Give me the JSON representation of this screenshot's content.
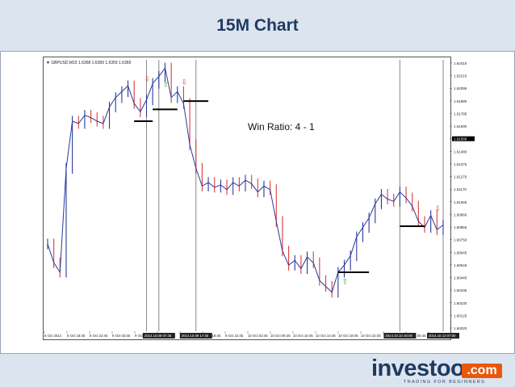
{
  "slide": {
    "title": "15M Chart"
  },
  "chart": {
    "header_text": "▼ GBPUSD,M15  1.6368 1.6369 1.6359 1.6369",
    "annotation": "Win Ratio: 4 - 1",
    "price_ticks": [
      "1.62315",
      "1.62210",
      "1.62095",
      "1.61980",
      "1.61785",
      "1.61690",
      "1.61589",
      "1.61480",
      "1.61375",
      "1.61270",
      "1.61170",
      "1.61065",
      "1.60960",
      "1.60855",
      "1.60750",
      "1.60645",
      "1.60540",
      "1.60440",
      "1.60335",
      "1.60230",
      "1.60125",
      "1.60020"
    ],
    "current_price": "1.61589",
    "time_ticks": [
      "8 Oct 2014",
      "8 Oct 18:45",
      "8 Oct 22:45",
      "9 Oct 03:45",
      "9 Oct 07:45",
      "9 Oct 10:45",
      "9 Oct 14:45",
      "9 Oct 18:45",
      "9 Oct 22:45",
      "10 Oct 02:45",
      "10 Oct 06:45",
      "10 Oct 10:45",
      "10 Oct 14:45",
      "10 Oct 18:45",
      "10 Oct 22:45",
      "13 Oct 02:45",
      "13 Oct 06:45",
      "13 Oct 10:45"
    ],
    "highlight_ticks": [
      "2014.10.09 07:45",
      "2014.10.09 17:45",
      "2014.10.10 20:00",
      "2014.10.13 07:00"
    ],
    "colors": {
      "up": "#2a3a9a",
      "down": "#e03a3a",
      "signal_up": "#22aa22",
      "signal_down": "#e03a3a"
    }
  },
  "chart_data": {
    "type": "line",
    "title": "15M Chart",
    "x_labels": [
      "8 Oct 2014",
      "8 Oct 18:45",
      "8 Oct 22:45",
      "9 Oct 03:45",
      "9 Oct 07:45",
      "9 Oct 10:45",
      "9 Oct 14:45",
      "9 Oct 18:45",
      "9 Oct 22:45",
      "10 Oct 02:45",
      "10 Oct 06:45",
      "10 Oct 10:45",
      "10 Oct 14:45",
      "10 Oct 18:45",
      "10 Oct 22:45",
      "13 Oct 02:45",
      "13 Oct 06:45",
      "13 Oct 10:45"
    ],
    "ylim": [
      1.6002,
      1.6232
    ],
    "values": [
      1.6076,
      1.606,
      1.6052,
      1.614,
      1.618,
      1.6178,
      1.6185,
      1.6183,
      1.618,
      1.6178,
      1.6192,
      1.62,
      1.6205,
      1.621,
      1.6195,
      1.6188,
      1.6198,
      1.6212,
      1.6218,
      1.6225,
      1.62,
      1.6205,
      1.6195,
      1.616,
      1.614,
      1.6125,
      1.6128,
      1.6124,
      1.6126,
      1.6122,
      1.6128,
      1.6125,
      1.613,
      1.6127,
      1.612,
      1.6125,
      1.6122,
      1.6095,
      1.607,
      1.6058,
      1.6062,
      1.6055,
      1.6065,
      1.606,
      1.6045,
      1.604,
      1.6035,
      1.6052,
      1.6058,
      1.6066,
      1.6082,
      1.609,
      1.6098,
      1.611,
      1.6118,
      1.6114,
      1.6112,
      1.612,
      1.6115,
      1.6108,
      1.6095,
      1.609,
      1.61,
      1.6088,
      1.6092
    ],
    "levels": [
      1.618,
      1.619,
      1.6197,
      1.6052,
      1.6091
    ],
    "grid": false
  }
}
